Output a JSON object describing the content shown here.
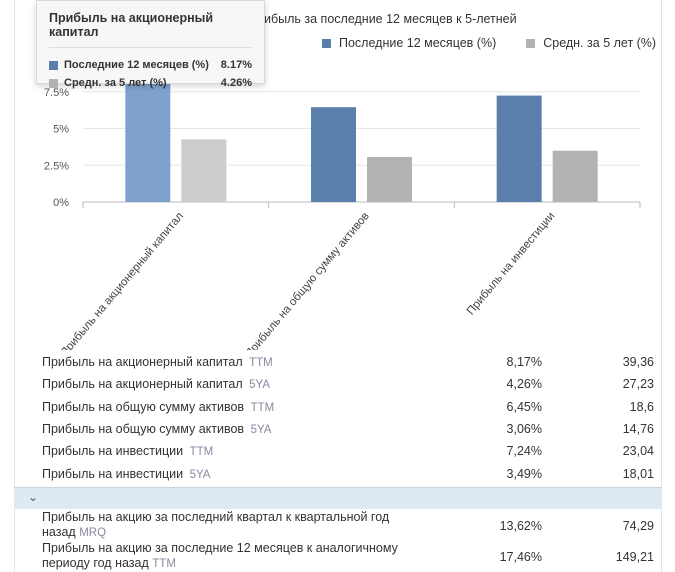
{
  "chart": {
    "caption": "ибыль за последние 12 месяцев к 5-летней",
    "legend": [
      {
        "label": "Последние 12 месяцев (%)",
        "color": "#5b7fac"
      },
      {
        "label": "Средн. за 5 лет (%)",
        "color": "#b3b3b3"
      }
    ]
  },
  "chart_data": {
    "type": "bar",
    "categories": [
      "Прибыль на акционерный капитал",
      "Прибыль на общую сумму активов",
      "Прибыль на инвестиции"
    ],
    "series": [
      {
        "name": "Последние 12 месяцев (%)",
        "values": [
          8.17,
          6.45,
          7.24
        ],
        "color": "#5b7fac",
        "highlight_color": "#7ea1cd"
      },
      {
        "name": "Средн. за 5 лет (%)",
        "values": [
          4.26,
          3.06,
          3.49
        ],
        "color": "#b3b3b3",
        "highlight_color": "#cccccc"
      }
    ],
    "highlighted_category": 0,
    "yticks": [
      "0%",
      "2.5%",
      "5%",
      "7.5%"
    ],
    "ytick_values": [
      0,
      2.5,
      5,
      7.5
    ],
    "ylim": [
      0,
      10
    ]
  },
  "tooltip": {
    "title": "Прибыль на акционерный капитал",
    "rows": [
      {
        "label": "Последние 12 месяцев (%)",
        "value": "8.17%",
        "color": "#5b7fac"
      },
      {
        "label": "Средн. за 5 лет (%)",
        "value": "4.26%",
        "color": "#b3b3b3"
      }
    ]
  },
  "table": {
    "rows": [
      {
        "label": "Прибыль на акционерный капитал",
        "tag": "TTM",
        "v1": "8,17%",
        "v2": "39,36"
      },
      {
        "label": "Прибыль на акционерный капитал",
        "tag": "5YA",
        "v1": "4,26%",
        "v2": "27,23"
      },
      {
        "label": "Прибыль на общую сумму активов",
        "tag": "TTM",
        "v1": "6,45%",
        "v2": "18,6"
      },
      {
        "label": "Прибыль на общую сумму активов",
        "tag": "5YA",
        "v1": "3,06%",
        "v2": "14,76"
      },
      {
        "label": "Прибыль на инвестиции",
        "tag": "TTM",
        "v1": "7,24%",
        "v2": "23,04"
      },
      {
        "label": "Прибыль на инвестиции",
        "tag": "5YA",
        "v1": "3,49%",
        "v2": "18,01"
      }
    ],
    "section_chevron": "⌄",
    "rows2": [
      {
        "label": "Прибыль на акцию за последний квартал к квартальной год назад",
        "tag": "MRQ",
        "v1": "13,62%",
        "v2": "74,29"
      },
      {
        "label": "Прибыль на акцию за последние 12 месяцев к аналогичному периоду год назад",
        "tag": "TTM",
        "v1": "17,46%",
        "v2": "149,21"
      }
    ]
  }
}
